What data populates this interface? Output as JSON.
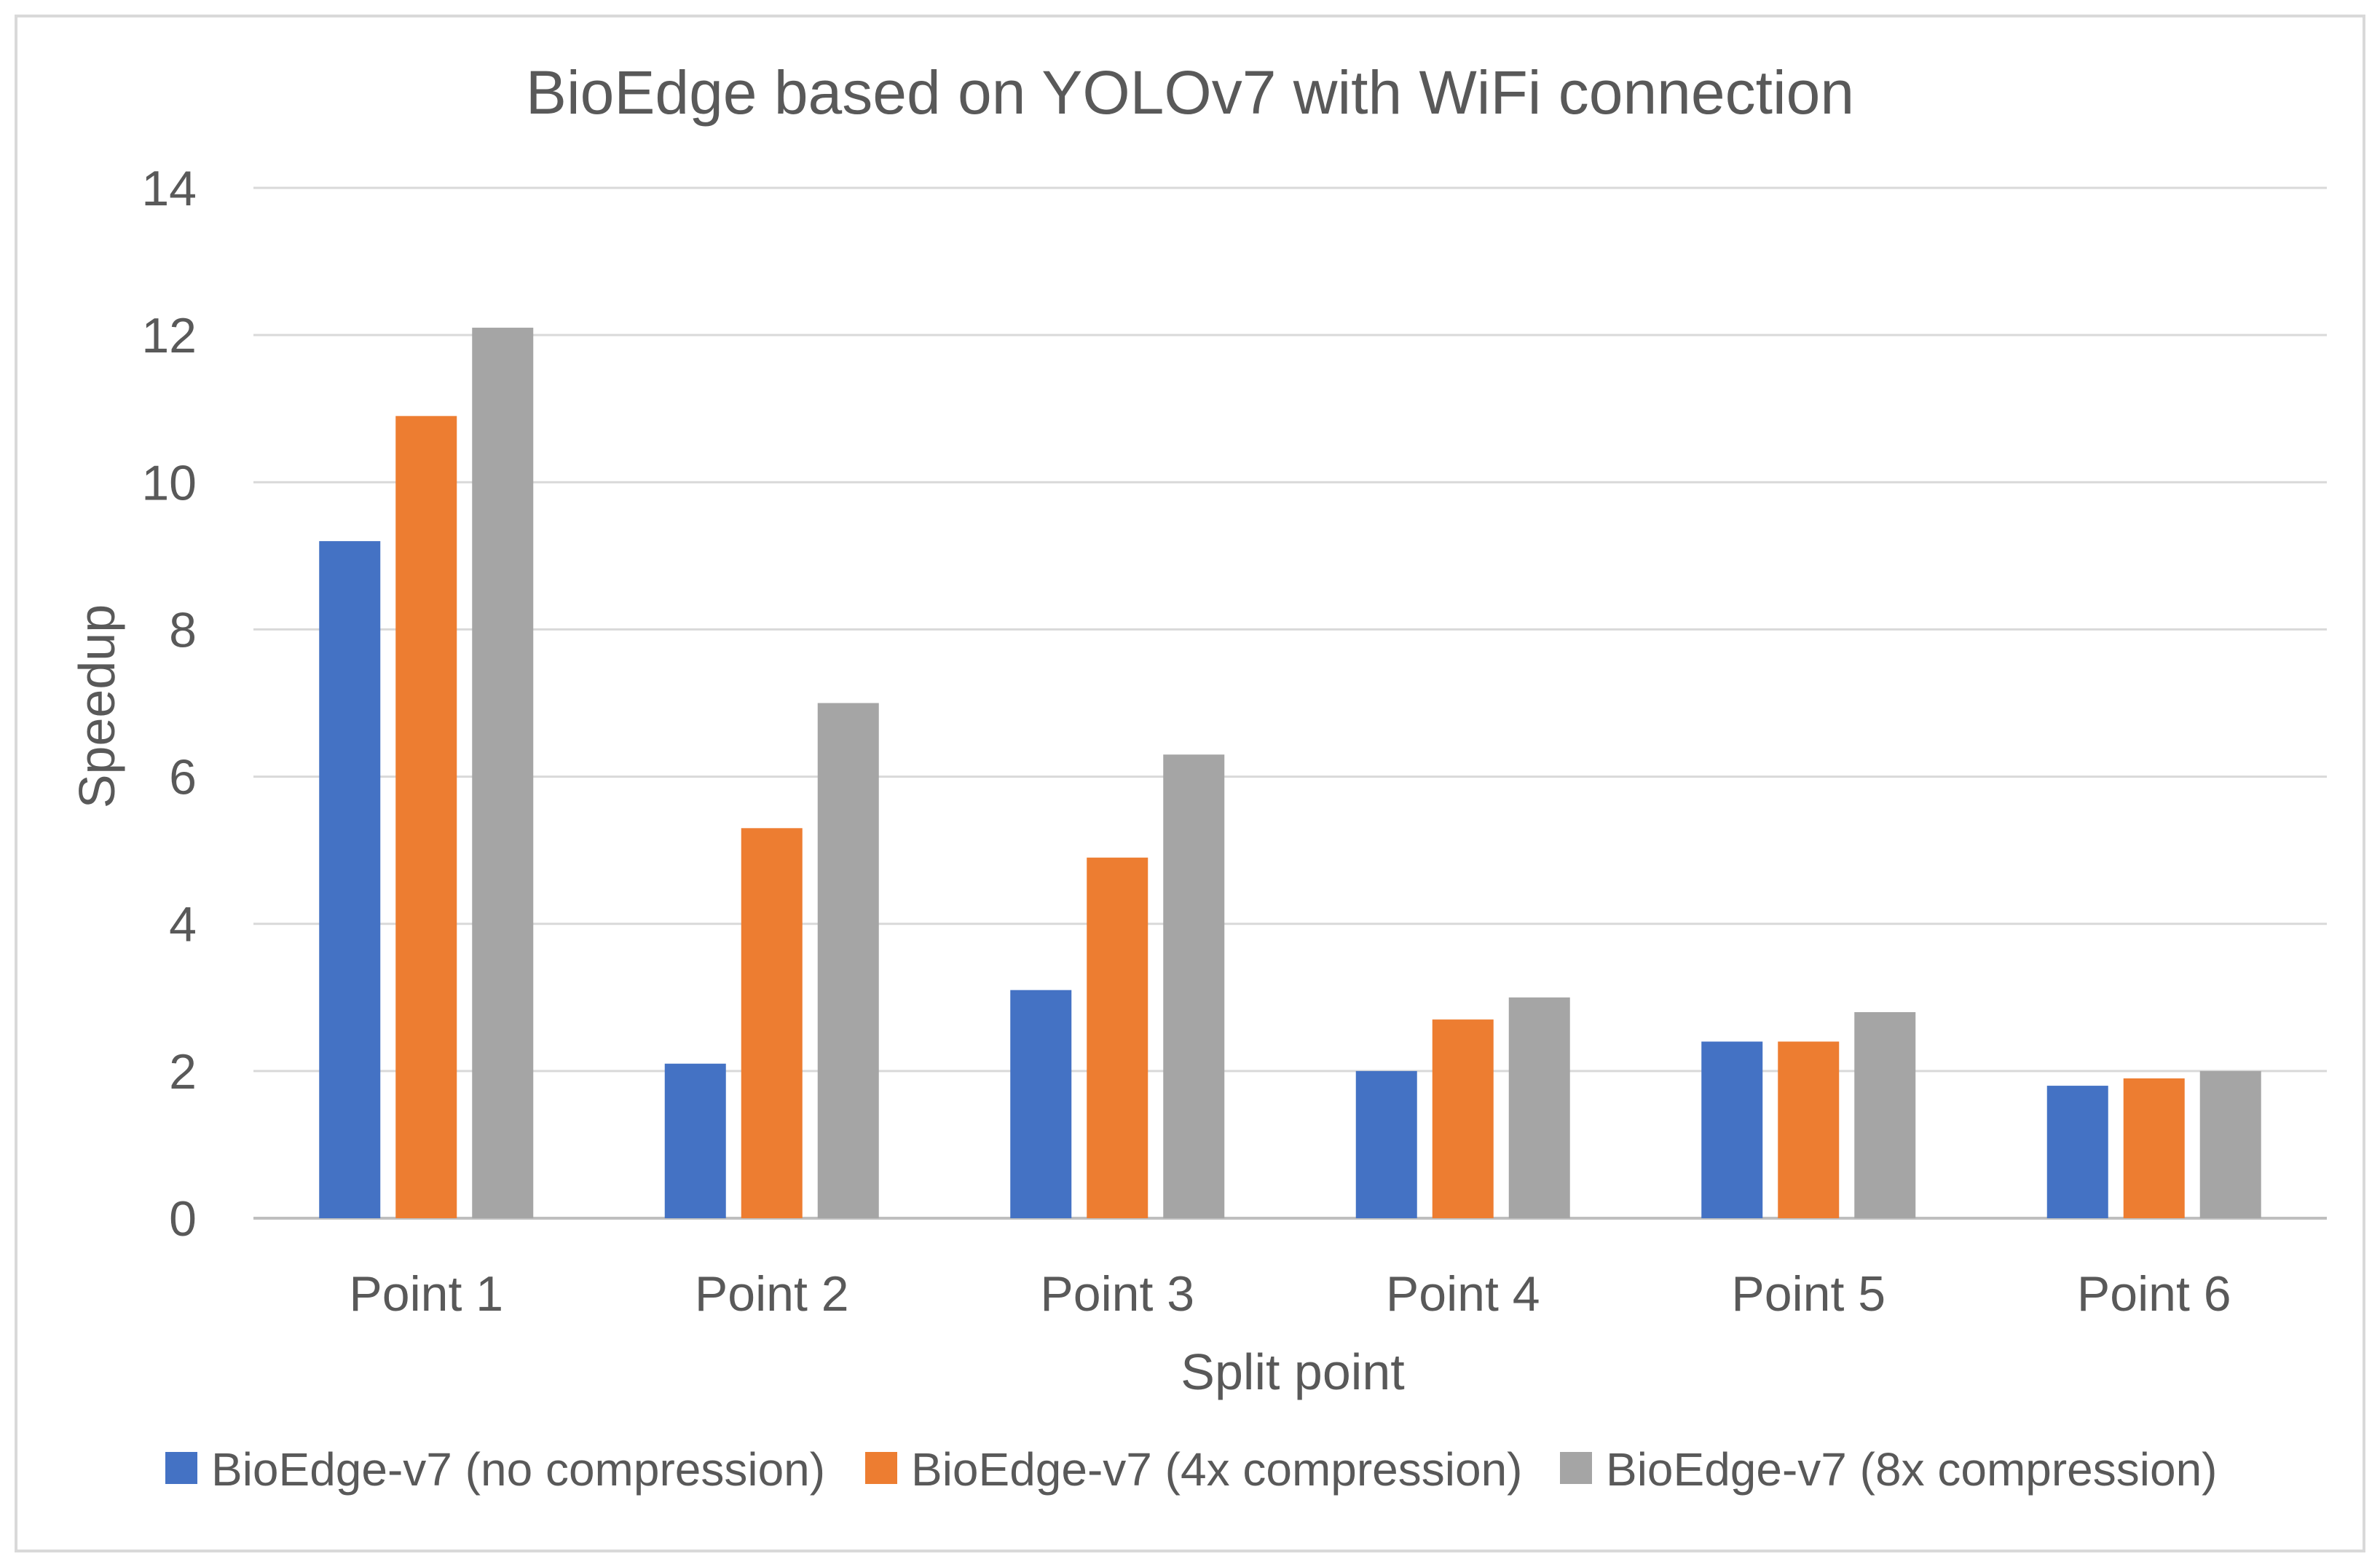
{
  "chart_data": {
    "type": "bar",
    "title": "BioEdge based on YOLOv7 with WiFi connection",
    "xlabel": "Split point",
    "ylabel": "Speedup",
    "ylim": [
      0,
      14
    ],
    "yticks": [
      0,
      2,
      4,
      6,
      8,
      10,
      12,
      14
    ],
    "grid": true,
    "legend_position": "bottom",
    "categories": [
      "Point 1",
      "Point 2",
      "Point 3",
      "Point 4",
      "Point 5",
      "Point 6"
    ],
    "series": [
      {
        "name": "BioEdge-v7 (no compression)",
        "color": "#4472C4",
        "values": [
          9.2,
          2.1,
          3.1,
          2.0,
          2.4,
          1.8
        ]
      },
      {
        "name": "BioEdge-v7 (4x compression)",
        "color": "#ED7D31",
        "values": [
          10.9,
          5.3,
          4.9,
          2.7,
          2.4,
          1.9
        ]
      },
      {
        "name": "BioEdge-v7 (8x compression)",
        "color": "#A5A5A5",
        "values": [
          12.1,
          7.0,
          6.3,
          3.0,
          2.8,
          2.0
        ]
      }
    ]
  }
}
